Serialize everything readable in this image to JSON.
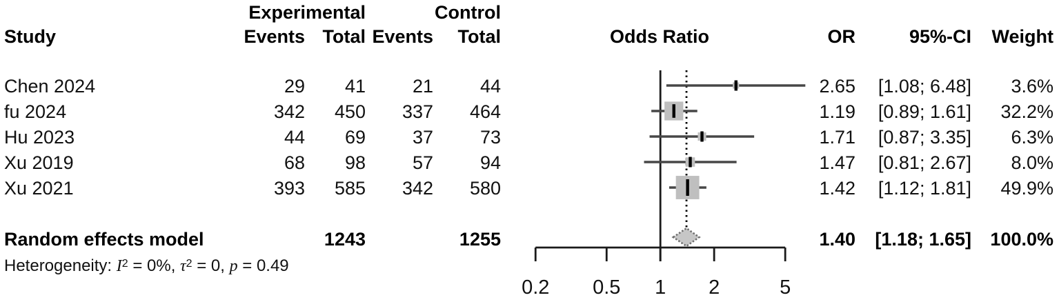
{
  "header": {
    "study": "Study",
    "group_experimental": "Experimental",
    "group_control": "Control",
    "events": "Events",
    "total": "Total",
    "plot_title": "Odds Ratio",
    "or": "OR",
    "ci": "95%-CI",
    "weight": "Weight"
  },
  "studies": [
    {
      "name": "Chen 2024",
      "events_exp": "29",
      "total_exp": "41",
      "events_ctl": "21",
      "total_ctl": "44",
      "or": "2.65",
      "ci": "[1.08; 6.48]",
      "weight": "3.6%"
    },
    {
      "name": "fu 2024",
      "events_exp": "342",
      "total_exp": "450",
      "events_ctl": "337",
      "total_ctl": "464",
      "or": "1.19",
      "ci": "[0.89; 1.61]",
      "weight": "32.2%"
    },
    {
      "name": "Hu 2023",
      "events_exp": "44",
      "total_exp": "69",
      "events_ctl": "37",
      "total_ctl": "73",
      "or": "1.71",
      "ci": "[0.87; 3.35]",
      "weight": "6.3%"
    },
    {
      "name": "Xu 2019",
      "events_exp": "68",
      "total_exp": "98",
      "events_ctl": "57",
      "total_ctl": "94",
      "or": "1.47",
      "ci": "[0.81; 2.67]",
      "weight": "8.0%"
    },
    {
      "name": "Xu 2021",
      "events_exp": "393",
      "total_exp": "585",
      "events_ctl": "342",
      "total_ctl": "580",
      "or": "1.42",
      "ci": "[1.12; 1.81]",
      "weight": "49.9%"
    }
  ],
  "summary": {
    "label": "Random effects model",
    "total_exp": "1243",
    "total_ctl": "1255",
    "or": "1.40",
    "ci": "[1.18; 1.65]",
    "weight": "100.0%"
  },
  "heterogeneity": {
    "prefix": "Heterogeneity: ",
    "i_sym": "I",
    "i_sup": "2",
    "seg1": " = 0%, ",
    "tau_sym": "τ",
    "tau_sup": "2",
    "seg2": " = 0, ",
    "p_sym": "p",
    "seg3": " = 0.49"
  },
  "axis": {
    "tick_labels": [
      "0.2",
      "0.5",
      "1",
      "2",
      "5"
    ]
  },
  "colors": {
    "square": "#bfbfbf",
    "diamond_fill": "#c6c6c6",
    "diamond_stroke": "#6f6f6f",
    "ci_line": "#474747",
    "axis_line": "#1a1a1a",
    "marker_tick": "#000000"
  },
  "chart_data": {
    "type": "forest",
    "x_scale": "log",
    "title": "Odds Ratio",
    "ref_line": 1,
    "xticks": [
      0.2,
      0.5,
      1,
      2,
      5
    ],
    "xlim": [
      0.2,
      5
    ],
    "studies": [
      {
        "name": "Chen 2024",
        "or": 2.65,
        "lo": 1.08,
        "hi": 6.48,
        "weight": 3.6
      },
      {
        "name": "fu 2024",
        "or": 1.19,
        "lo": 0.89,
        "hi": 1.61,
        "weight": 32.2
      },
      {
        "name": "Hu 2023",
        "or": 1.71,
        "lo": 0.87,
        "hi": 3.35,
        "weight": 6.3
      },
      {
        "name": "Xu 2019",
        "or": 1.47,
        "lo": 0.81,
        "hi": 2.67,
        "weight": 8.0
      },
      {
        "name": "Xu 2021",
        "or": 1.42,
        "lo": 1.12,
        "hi": 1.81,
        "weight": 49.9
      }
    ],
    "pooled": {
      "model": "Random effects model",
      "or": 1.4,
      "lo": 1.18,
      "hi": 1.65,
      "weight": 100.0
    },
    "heterogeneity": {
      "I2": "0%",
      "tau2": "0",
      "p": "0.49"
    }
  }
}
